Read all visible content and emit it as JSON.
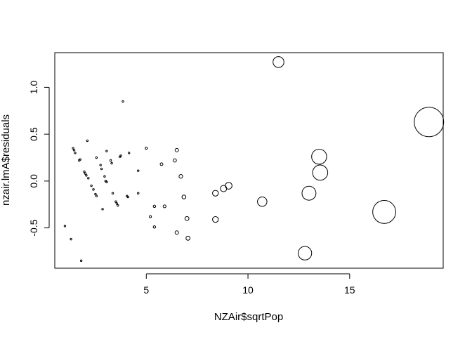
{
  "chart_data": {
    "type": "scatter",
    "title": "",
    "xlabel": "NZAir$sqrtPop",
    "ylabel": "nzair.lmA$residuals",
    "xlim": [
      0.5,
      19.6
    ],
    "ylim": [
      -0.93,
      1.37
    ],
    "xticks": [
      5,
      10,
      15
    ],
    "yticks": [
      -0.5,
      0.0,
      0.5,
      1.0
    ],
    "xtick_labels": [
      "5",
      "10",
      "15"
    ],
    "ytick_labels": [
      "-0.5",
      "0.0",
      "0.5",
      "1.0"
    ],
    "grid": false,
    "legend": "none",
    "marker": "open-circle",
    "marker_size_encodes": "x",
    "color": "#000000",
    "points": [
      {
        "x": 1.0,
        "y": -0.48
      },
      {
        "x": 1.3,
        "y": -0.62
      },
      {
        "x": 1.8,
        "y": -0.85
      },
      {
        "x": 1.4,
        "y": 0.35
      },
      {
        "x": 1.45,
        "y": 0.33
      },
      {
        "x": 1.5,
        "y": 0.3
      },
      {
        "x": 1.7,
        "y": 0.22
      },
      {
        "x": 1.75,
        "y": 0.23
      },
      {
        "x": 2.1,
        "y": 0.43
      },
      {
        "x": 1.95,
        "y": 0.1
      },
      {
        "x": 2.0,
        "y": 0.08
      },
      {
        "x": 2.05,
        "y": 0.06
      },
      {
        "x": 2.15,
        "y": 0.03
      },
      {
        "x": 2.3,
        "y": -0.05
      },
      {
        "x": 2.4,
        "y": -0.09
      },
      {
        "x": 2.5,
        "y": -0.14
      },
      {
        "x": 2.55,
        "y": -0.16
      },
      {
        "x": 2.55,
        "y": 0.25
      },
      {
        "x": 2.75,
        "y": 0.17
      },
      {
        "x": 2.8,
        "y": 0.13
      },
      {
        "x": 2.85,
        "y": -0.3
      },
      {
        "x": 2.95,
        "y": 0.05
      },
      {
        "x": 3.0,
        "y": 0.0
      },
      {
        "x": 3.05,
        "y": -0.01
      },
      {
        "x": 3.05,
        "y": 0.32
      },
      {
        "x": 3.25,
        "y": 0.22
      },
      {
        "x": 3.3,
        "y": 0.19
      },
      {
        "x": 3.35,
        "y": -0.13
      },
      {
        "x": 3.5,
        "y": -0.22
      },
      {
        "x": 3.55,
        "y": -0.24
      },
      {
        "x": 3.6,
        "y": -0.26
      },
      {
        "x": 3.7,
        "y": 0.26
      },
      {
        "x": 3.75,
        "y": 0.27
      },
      {
        "x": 3.85,
        "y": 0.85
      },
      {
        "x": 4.05,
        "y": -0.16
      },
      {
        "x": 4.1,
        "y": -0.17
      },
      {
        "x": 4.15,
        "y": 0.3
      },
      {
        "x": 4.6,
        "y": 0.11
      },
      {
        "x": 4.6,
        "y": -0.13
      },
      {
        "x": 5.0,
        "y": 0.35
      },
      {
        "x": 5.2,
        "y": -0.38
      },
      {
        "x": 5.4,
        "y": -0.27
      },
      {
        "x": 5.4,
        "y": -0.49
      },
      {
        "x": 5.75,
        "y": 0.18
      },
      {
        "x": 5.9,
        "y": -0.27
      },
      {
        "x": 6.4,
        "y": 0.22
      },
      {
        "x": 6.5,
        "y": 0.33
      },
      {
        "x": 6.5,
        "y": -0.55
      },
      {
        "x": 6.7,
        "y": 0.05
      },
      {
        "x": 6.85,
        "y": -0.17
      },
      {
        "x": 7.0,
        "y": -0.4
      },
      {
        "x": 7.05,
        "y": -0.61
      },
      {
        "x": 8.4,
        "y": -0.13
      },
      {
        "x": 8.4,
        "y": -0.41
      },
      {
        "x": 8.8,
        "y": -0.08
      },
      {
        "x": 9.05,
        "y": -0.05
      },
      {
        "x": 10.7,
        "y": -0.22
      },
      {
        "x": 11.5,
        "y": 1.27
      },
      {
        "x": 12.8,
        "y": -0.77
      },
      {
        "x": 13.0,
        "y": -0.13
      },
      {
        "x": 13.5,
        "y": 0.26
      },
      {
        "x": 13.55,
        "y": 0.09
      },
      {
        "x": 16.7,
        "y": -0.33
      },
      {
        "x": 18.9,
        "y": 0.63
      }
    ]
  }
}
